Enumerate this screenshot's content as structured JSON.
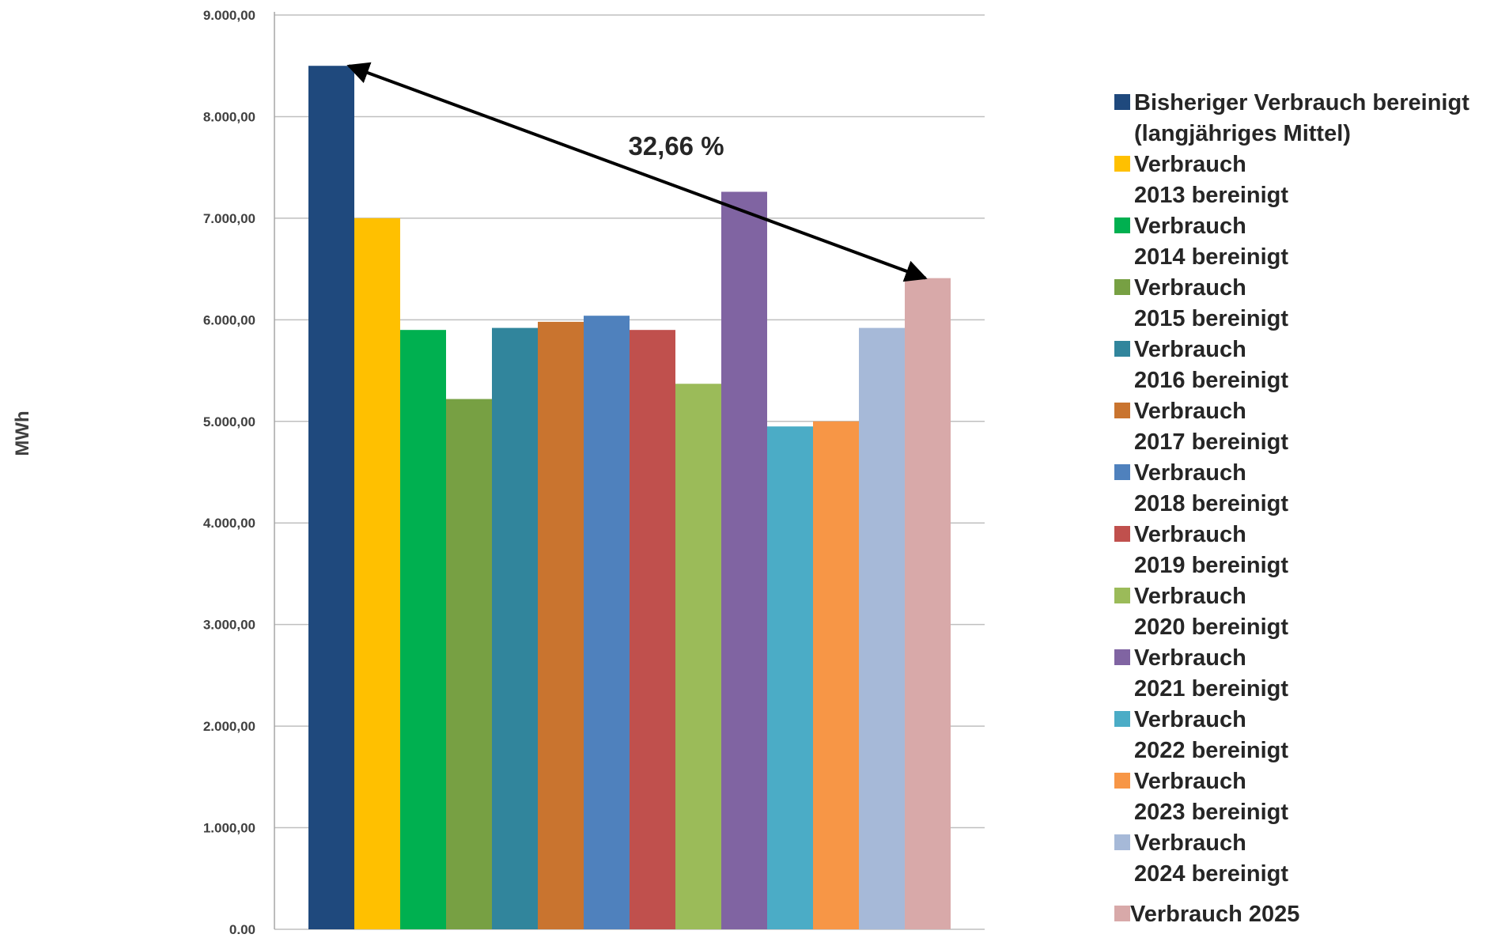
{
  "chart_data": {
    "type": "bar",
    "ylabel": "MWh",
    "ylim": [
      0,
      9000
    ],
    "y_ticks": [
      "0,00",
      "1.000,00",
      "2.000,00",
      "3.000,00",
      "4.000,00",
      "5.000,00",
      "6.000,00",
      "7.000,00",
      "8.000,00",
      "9.000,00"
    ],
    "grid": true,
    "legend_position": "right",
    "series": [
      {
        "label": [
          "Bisheriger Verbrauch bereinigt",
          "(langjähriges Mittel)"
        ],
        "value": 8500,
        "color": "#1f497d"
      },
      {
        "label": [
          "Verbrauch",
          "2013 bereinigt"
        ],
        "value": 7000,
        "color": "#ffc000"
      },
      {
        "label": [
          "Verbrauch",
          "2014 bereinigt"
        ],
        "value": 5900,
        "color": "#00b050"
      },
      {
        "label": [
          "Verbrauch",
          "2015 bereinigt"
        ],
        "value": 5220,
        "color": "#77a043"
      },
      {
        "label": [
          "Verbrauch",
          "2016 bereinigt"
        ],
        "value": 5920,
        "color": "#31859c"
      },
      {
        "label": [
          "Verbrauch",
          "2017 bereinigt"
        ],
        "value": 5980,
        "color": "#c9742f"
      },
      {
        "label": [
          "Verbrauch",
          "2018 bereinigt"
        ],
        "value": 6040,
        "color": "#4f81bd"
      },
      {
        "label": [
          "Verbrauch",
          "2019 bereinigt"
        ],
        "value": 5900,
        "color": "#c0504d"
      },
      {
        "label": [
          "Verbrauch",
          "2020 bereinigt"
        ],
        "value": 5370,
        "color": "#9bbb59"
      },
      {
        "label": [
          "Verbrauch",
          "2021 bereinigt"
        ],
        "value": 7260,
        "color": "#8064a2"
      },
      {
        "label": [
          "Verbrauch",
          "2022 bereinigt"
        ],
        "value": 4950,
        "color": "#4bacc6"
      },
      {
        "label": [
          "Verbrauch",
          "2023 bereinigt"
        ],
        "value": 5000,
        "color": "#f79646"
      },
      {
        "label": [
          "Verbrauch",
          "2024  bereinigt"
        ],
        "value": 5920,
        "color": "#a6b9d8"
      },
      {
        "label": [
          "Verbrauch 2025"
        ],
        "value": 6410,
        "color": "#d8a9a9"
      }
    ],
    "annotation": {
      "text": "32,66 %",
      "from_value": 8500,
      "to_value": 6410
    }
  }
}
